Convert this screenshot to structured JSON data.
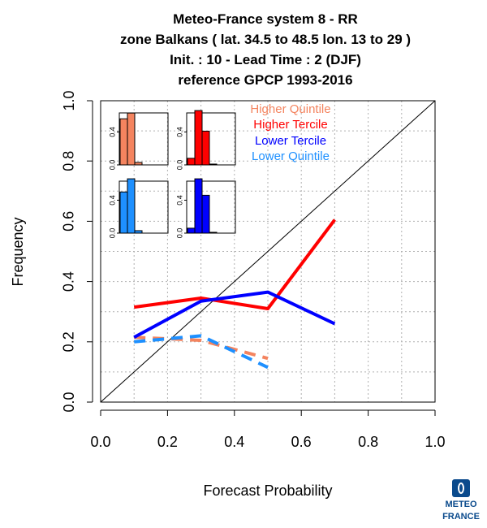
{
  "title_lines": [
    "Meteo-France system 8  -  RR",
    "zone Balkans ( lat. 34.5 to 48.5    lon. 13 to 29 )",
    "Init. : 10  - Lead Time : 2 (DJF)",
    "reference GPCP 1993-2016"
  ],
  "logo": {
    "line1": "METEO",
    "line2": "FRANCE"
  },
  "chart_data": {
    "type": "line",
    "xlabel": "Forecast Probability",
    "ylabel": "Frequency",
    "xlim": [
      0,
      1
    ],
    "ylim": [
      0,
      1
    ],
    "x_ticks": [
      "0.0",
      "0.2",
      "0.4",
      "0.6",
      "0.8",
      "1.0"
    ],
    "y_ticks": [
      "0.0",
      "0.2",
      "0.4",
      "0.6",
      "0.8",
      "1.0"
    ],
    "grid": true,
    "diagonal": true,
    "legend_position": "top-right",
    "series": [
      {
        "name": "Higher Quintile",
        "color": "#f4845f",
        "dashed": true,
        "x": [
          0.1,
          0.3,
          0.5
        ],
        "y": [
          0.215,
          0.205,
          0.145
        ]
      },
      {
        "name": "Higher Tercile",
        "color": "#ff0000",
        "dashed": false,
        "x": [
          0.1,
          0.3,
          0.5,
          0.7
        ],
        "y": [
          0.315,
          0.345,
          0.31,
          0.605
        ]
      },
      {
        "name": "Lower Tercile",
        "color": "#0000ff",
        "dashed": false,
        "x": [
          0.1,
          0.3,
          0.5,
          0.7
        ],
        "y": [
          0.215,
          0.335,
          0.365,
          0.26
        ]
      },
      {
        "name": "Lower Quintile",
        "color": "#1e90ff",
        "dashed": true,
        "x": [
          0.1,
          0.3,
          0.5
        ],
        "y": [
          0.2,
          0.22,
          0.115
        ]
      }
    ],
    "insets": [
      {
        "series": "Higher Quintile",
        "color": "#f4845f",
        "y_ticks": [
          "0.0",
          "0.4"
        ],
        "ylim": [
          0,
          0.6
        ],
        "values": [
          0.56,
          0.63,
          0.03
        ]
      },
      {
        "series": "Higher Tercile",
        "color": "#ff0000",
        "y_ticks": [
          "0.0",
          "0.4"
        ],
        "ylim": [
          0,
          0.6
        ],
        "values": [
          0.08,
          0.66,
          0.41,
          0.01
        ]
      },
      {
        "series": "Lower Quintile",
        "color": "#1e90ff",
        "y_ticks": [
          "0.0",
          "0.4"
        ],
        "ylim": [
          0,
          0.6
        ],
        "values": [
          0.5,
          0.66,
          0.03
        ]
      },
      {
        "series": "Lower Tercile",
        "color": "#0000ff",
        "y_ticks": [
          "0.0",
          "0.4"
        ],
        "ylim": [
          0,
          0.6
        ],
        "values": [
          0.06,
          0.66,
          0.46,
          0.01
        ]
      }
    ]
  }
}
